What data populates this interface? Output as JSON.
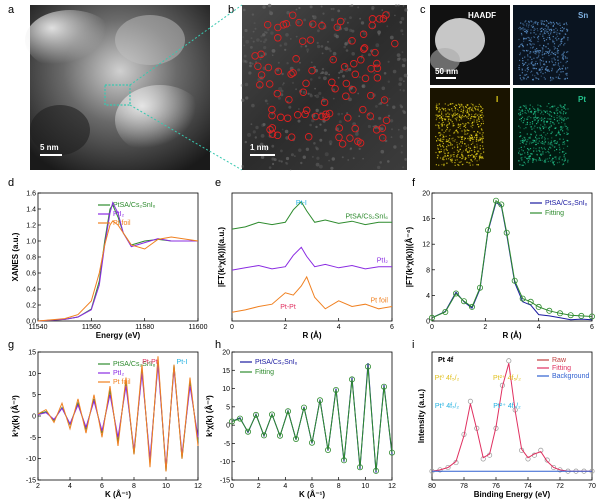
{
  "panel_labels": [
    "a",
    "b",
    "c",
    "d",
    "e",
    "f",
    "g",
    "h",
    "i"
  ],
  "micrographs": {
    "a_scale": "5 nm",
    "b_scale": "1 nm",
    "c_scale": "50 nm",
    "c_maps": [
      "HAADF",
      "Sn",
      "I",
      "Pt"
    ],
    "colors": {
      "Sn": "#5a8fc7",
      "I": "#e6d21a",
      "Pt": "#22c08a"
    }
  },
  "chart_data": [
    {
      "panel": "d",
      "type": "line",
      "xlabel": "Energy (eV)",
      "ylabel": "XANES (a.u.)",
      "xlim": [
        11540,
        11600
      ],
      "ylim": [
        0,
        1.6
      ],
      "xticks": [
        "11540",
        "11560",
        "11580",
        "11600"
      ],
      "yticks": [
        "0.0",
        "0.2",
        "0.4",
        "0.6",
        "0.8",
        "1.0",
        "1.2",
        "1.4",
        "1.6"
      ],
      "series": [
        {
          "name": "PtSA/Cs₂SnI₆",
          "color": "#2e8b2e",
          "x": [
            11540,
            11550,
            11555,
            11560,
            11563,
            11565,
            11567,
            11568,
            11570,
            11572,
            11575,
            11580,
            11585,
            11590,
            11600
          ],
          "y": [
            0.0,
            0.02,
            0.05,
            0.15,
            0.5,
            1.0,
            1.4,
            1.45,
            1.3,
            1.1,
            0.95,
            1.0,
            1.02,
            1.0,
            1.0
          ]
        },
        {
          "name": "PtI₂",
          "color": "#8a2be2",
          "x": [
            11540,
            11550,
            11555,
            11560,
            11563,
            11565,
            11567,
            11568,
            11570,
            11572,
            11575,
            11580,
            11585,
            11590,
            11600
          ],
          "y": [
            0.0,
            0.02,
            0.05,
            0.14,
            0.45,
            0.95,
            1.35,
            1.48,
            1.35,
            1.1,
            0.93,
            0.98,
            1.03,
            1.0,
            1.0
          ]
        },
        {
          "name": "Pt foil",
          "color": "#f08020",
          "x": [
            11540,
            11550,
            11555,
            11560,
            11563,
            11565,
            11567,
            11568,
            11570,
            11572,
            11575,
            11580,
            11585,
            11590,
            11600
          ],
          "y": [
            0.0,
            0.03,
            0.08,
            0.25,
            0.6,
            0.95,
            1.2,
            1.25,
            1.2,
            1.1,
            0.95,
            0.9,
            1.02,
            1.05,
            1.0
          ]
        }
      ]
    },
    {
      "panel": "e",
      "type": "line",
      "xlabel": "R (Å)",
      "ylabel": "|FT(k³χ(k))|(a.u.)",
      "xlim": [
        0,
        6
      ],
      "xticks": [
        "0",
        "2",
        "4",
        "6"
      ],
      "annotations": [
        "Pt-I",
        "Pt-Pt"
      ],
      "series": [
        {
          "name": "PtSA/Cs₂SnI₆",
          "color": "#2e8b2e",
          "x": [
            0,
            0.5,
            1,
            1.5,
            2,
            2.3,
            2.6,
            2.8,
            3.1,
            3.5,
            4,
            4.5,
            5,
            5.5,
            6
          ],
          "y": [
            0.78,
            0.8,
            0.84,
            0.82,
            0.84,
            0.95,
            1.02,
            0.94,
            0.84,
            0.86,
            0.83,
            0.85,
            0.82,
            0.84,
            0.84
          ]
        },
        {
          "name": "PtI₂",
          "color": "#8a2be2",
          "x": [
            0,
            0.5,
            1,
            1.5,
            2,
            2.3,
            2.6,
            2.8,
            3.1,
            3.5,
            4,
            4.5,
            5,
            5.5,
            6
          ],
          "y": [
            0.42,
            0.44,
            0.46,
            0.43,
            0.45,
            0.55,
            0.62,
            0.54,
            0.45,
            0.47,
            0.44,
            0.46,
            0.43,
            0.45,
            0.45
          ]
        },
        {
          "name": "Pt foil",
          "color": "#f08020",
          "x": [
            0,
            0.5,
            1,
            1.5,
            2,
            2.3,
            2.6,
            2.8,
            3.1,
            3.5,
            4,
            4.5,
            5,
            5.5,
            6
          ],
          "y": [
            0.05,
            0.07,
            0.1,
            0.12,
            0.22,
            0.2,
            0.28,
            0.36,
            0.18,
            0.08,
            0.15,
            0.1,
            0.12,
            0.08,
            0.1
          ]
        }
      ]
    },
    {
      "panel": "f",
      "type": "line",
      "xlabel": "R (Å)",
      "ylabel": "|FT(k³χ(k))|(Å⁻⁴)",
      "xlim": [
        0,
        6
      ],
      "ylim": [
        0,
        20
      ],
      "xticks": [
        "0",
        "2",
        "4",
        "6"
      ],
      "yticks": [
        "0",
        "4",
        "8",
        "12",
        "16",
        "20"
      ],
      "series": [
        {
          "name": "PtSA/Cs₂SnI₆",
          "color": "#1a1aa0",
          "x": [
            0,
            0.5,
            0.9,
            1.2,
            1.5,
            1.8,
            2.1,
            2.4,
            2.6,
            2.8,
            3.1,
            3.4,
            3.7,
            4.0,
            4.4,
            4.8,
            5.2,
            5.6,
            6
          ],
          "y": [
            0.5,
            1.5,
            4.5,
            3.0,
            2.0,
            5.0,
            14.0,
            18.5,
            18.0,
            13.5,
            6.0,
            3.0,
            2.5,
            1.0,
            0.8,
            0.5,
            0.2,
            0.3,
            0.2
          ]
        },
        {
          "name": "Fitting",
          "color": "#2e8b2e",
          "x": [
            0,
            0.5,
            0.9,
            1.2,
            1.5,
            1.8,
            2.1,
            2.4,
            2.6,
            2.8,
            3.1,
            3.4,
            3.7,
            4.0,
            4.4,
            4.8,
            5.2,
            5.6,
            6
          ],
          "y": [
            0.5,
            1.4,
            4.3,
            3.1,
            2.2,
            5.2,
            14.2,
            18.8,
            18.2,
            13.8,
            6.3,
            3.5,
            3.0,
            2.2,
            1.6,
            1.2,
            0.9,
            0.8,
            0.7
          ]
        }
      ]
    },
    {
      "panel": "g",
      "type": "line",
      "xlabel": "K (Å⁻¹)",
      "ylabel": "k³χ(k) (Å⁻³)",
      "xlim": [
        2,
        12
      ],
      "ylim": [
        -15,
        15
      ],
      "xticks": [
        "2",
        "4",
        "6",
        "8",
        "10",
        "12"
      ],
      "yticks": [
        "-15",
        "-10",
        "-5",
        "0",
        "5",
        "10",
        "15"
      ],
      "annotations": [
        "Pt-Pt",
        "Pt-I"
      ],
      "series": [
        {
          "name": "PtSA/Cs₂SnI₆",
          "color": "#2e8b2e",
          "x": [
            2,
            2.5,
            3,
            3.5,
            4,
            4.5,
            5,
            5.5,
            6,
            6.5,
            7,
            7.5,
            8,
            8.5,
            9,
            9.5,
            10,
            10.5,
            11,
            11.5,
            12
          ],
          "y": [
            0.5,
            1,
            -1,
            2,
            -2,
            3,
            -3,
            4,
            -4,
            6,
            -6,
            8,
            -9,
            11,
            -11,
            13,
            -13,
            12,
            -10,
            8,
            -6
          ]
        },
        {
          "name": "PtI₂",
          "color": "#8a2be2",
          "x": [
            2,
            2.5,
            3,
            3.5,
            4,
            4.5,
            5,
            5.5,
            6,
            6.5,
            7,
            7.5,
            8,
            8.5,
            9,
            9.5,
            10,
            10.5,
            11,
            11.5,
            12
          ],
          "y": [
            0.3,
            0.8,
            -0.8,
            1.8,
            -1.8,
            2.6,
            -2.6,
            3.5,
            -3.5,
            5,
            -5,
            7,
            -8,
            10,
            -10,
            12,
            -12,
            11,
            -9,
            7,
            -5
          ]
        },
        {
          "name": "Pt foil",
          "color": "#f08020",
          "x": [
            2,
            2.5,
            3,
            3.5,
            4,
            4.5,
            5,
            5.5,
            6,
            6.5,
            7,
            7.5,
            8,
            8.5,
            9,
            9.5,
            10,
            10.5,
            11,
            11.5,
            12
          ],
          "y": [
            0.5,
            1.5,
            -1.5,
            3,
            -3,
            4,
            -4,
            5,
            -5,
            7,
            -7,
            9,
            -9,
            12,
            -12,
            14,
            -13,
            12,
            -10,
            9,
            -7
          ]
        }
      ]
    },
    {
      "panel": "h",
      "type": "line",
      "xlabel": "K (Å⁻¹)",
      "ylabel": "k³χ(k) (Å⁻³)",
      "xlim": [
        0,
        12
      ],
      "ylim": [
        -15,
        20
      ],
      "xticks": [
        "0",
        "2",
        "4",
        "6",
        "8",
        "10",
        "12"
      ],
      "yticks": [
        "-15",
        "-10",
        "-5",
        "0",
        "5",
        "10",
        "15",
        "20"
      ],
      "series": [
        {
          "name": "PtSA/Cs₂SnI₆",
          "color": "#1a1aa0",
          "x": [
            0,
            0.6,
            1.2,
            1.8,
            2.4,
            3,
            3.6,
            4.2,
            4.8,
            5.4,
            6,
            6.6,
            7.2,
            7.8,
            8.4,
            9,
            9.6,
            10.2,
            10.8,
            11.4,
            12
          ],
          "y": [
            1,
            2,
            -2,
            3,
            -3,
            3,
            -3,
            4,
            -4,
            5,
            -5,
            7,
            -7,
            10,
            -10,
            13,
            -12,
            17,
            -13,
            11,
            -8
          ]
        },
        {
          "name": "Fitting",
          "color": "#2e8b2e",
          "x": [
            0,
            0.6,
            1.2,
            1.8,
            2.4,
            3,
            3.6,
            4.2,
            4.8,
            5.4,
            6,
            6.6,
            7.2,
            7.8,
            8.4,
            9,
            9.6,
            10.2,
            10.8,
            11.4,
            12
          ],
          "y": [
            1,
            1.8,
            -1.8,
            2.8,
            -2.8,
            2.9,
            -2.9,
            3.8,
            -3.8,
            4.8,
            -4.8,
            6.8,
            -6.8,
            9.6,
            -9.6,
            12.5,
            -11.5,
            16,
            -12.5,
            10.5,
            -7.5
          ]
        }
      ]
    },
    {
      "panel": "i",
      "type": "line",
      "xlabel": "Binding Energy (eV)",
      "ylabel": "Intensity (a.u.)",
      "xlim": [
        80,
        70
      ],
      "inverted_x": true,
      "xticks": [
        "80",
        "78",
        "76",
        "74",
        "72",
        "70"
      ],
      "title": "Pt 4f",
      "annotations": [
        "Pt⁰ 4f₅/₂",
        "Pt²⁺ 4f₅/₂",
        "Pt⁰ 4f₇/₂",
        "Pt²⁺ 4f₇/₂"
      ],
      "series": [
        {
          "name": "Raw",
          "color": "#c04040",
          "x": [
            80,
            79.5,
            79,
            78.5,
            78,
            77.6,
            77.2,
            76.8,
            76.4,
            76,
            75.6,
            75.2,
            74.8,
            74.4,
            74,
            73.6,
            73.2,
            72.8,
            72.4,
            72,
            71.5,
            71,
            70.5,
            70
          ],
          "y": [
            0.05,
            0.06,
            0.08,
            0.12,
            0.35,
            0.62,
            0.4,
            0.15,
            0.18,
            0.4,
            0.75,
            0.95,
            0.55,
            0.22,
            0.15,
            0.18,
            0.22,
            0.14,
            0.08,
            0.06,
            0.05,
            0.05,
            0.05,
            0.05
          ]
        },
        {
          "name": "Fitting",
          "color": "#e03060",
          "x": [
            80,
            79.5,
            79,
            78.5,
            78,
            77.6,
            77.2,
            76.8,
            76.4,
            76,
            75.6,
            75.2,
            74.8,
            74.4,
            74,
            73.6,
            73.2,
            72.8,
            72.4,
            72,
            71.5,
            71,
            70.5,
            70
          ],
          "y": [
            0.05,
            0.06,
            0.08,
            0.13,
            0.34,
            0.6,
            0.39,
            0.16,
            0.19,
            0.41,
            0.74,
            0.93,
            0.54,
            0.23,
            0.16,
            0.19,
            0.21,
            0.13,
            0.08,
            0.06,
            0.05,
            0.05,
            0.05,
            0.05
          ]
        },
        {
          "name": "Background",
          "color": "#3060d0",
          "x": [
            80,
            79,
            78,
            77,
            76,
            75,
            74,
            73,
            72,
            71,
            70
          ],
          "y": [
            0.05,
            0.05,
            0.05,
            0.05,
            0.05,
            0.05,
            0.05,
            0.05,
            0.05,
            0.05,
            0.05
          ]
        }
      ]
    }
  ]
}
